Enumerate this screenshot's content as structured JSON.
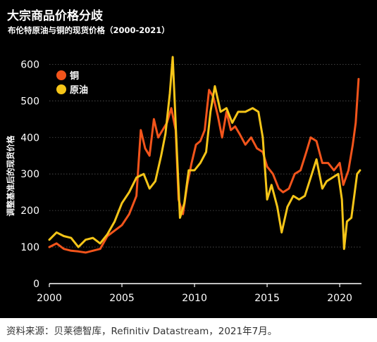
{
  "header": {
    "title": "大宗商品价格分歧",
    "subtitle": "布伦特原油与铜的现货价格（2000-2021）"
  },
  "footer": {
    "source": "资料来源：贝莱德智库，Refinitiv Datastream，2021年7月。"
  },
  "colors": {
    "background": "#000000",
    "copper": "#f2541b",
    "oil": "#f5c518",
    "axis_text": "#ffffff",
    "grid": "#555555"
  },
  "chart_data": {
    "type": "line",
    "ylabel": "调整基准后的现货价格",
    "xlabel": "",
    "xlim": [
      2000,
      2021.5
    ],
    "ylim": [
      0,
      620
    ],
    "x_ticks": [
      2000,
      2005,
      2010,
      2015,
      2020
    ],
    "y_ticks": [
      0,
      100,
      200,
      300,
      400,
      500,
      600
    ],
    "grid": "horizontal",
    "legend": "top-left",
    "series": [
      {
        "name": "铜",
        "color": "#f2541b",
        "x": [
          2000.0,
          2000.5,
          2001.0,
          2001.5,
          2002.0,
          2002.5,
          2003.0,
          2003.5,
          2004.0,
          2004.5,
          2005.0,
          2005.5,
          2006.0,
          2006.3,
          2006.6,
          2006.9,
          2007.2,
          2007.5,
          2007.8,
          2008.1,
          2008.4,
          2008.7,
          2008.9,
          2009.2,
          2009.5,
          2009.8,
          2010.1,
          2010.4,
          2010.7,
          2011.0,
          2011.3,
          2011.6,
          2011.9,
          2012.2,
          2012.5,
          2012.8,
          2013.1,
          2013.5,
          2013.9,
          2014.3,
          2014.7,
          2015.0,
          2015.4,
          2015.8,
          2016.1,
          2016.5,
          2016.9,
          2017.3,
          2017.7,
          2018.0,
          2018.4,
          2018.8,
          2019.2,
          2019.6,
          2020.0,
          2020.25,
          2020.6,
          2020.9,
          2021.1,
          2021.3
        ],
        "y": [
          100,
          110,
          95,
          90,
          88,
          85,
          90,
          95,
          130,
          145,
          160,
          190,
          240,
          420,
          370,
          350,
          450,
          400,
          420,
          440,
          480,
          420,
          230,
          190,
          270,
          330,
          380,
          390,
          420,
          530,
          510,
          460,
          400,
          470,
          420,
          430,
          410,
          380,
          400,
          370,
          360,
          320,
          300,
          260,
          250,
          260,
          300,
          310,
          360,
          400,
          390,
          330,
          330,
          310,
          330,
          270,
          310,
          380,
          440,
          560
        ]
      },
      {
        "name": "原油",
        "color": "#f5c518",
        "x": [
          2000.0,
          2000.5,
          2001.0,
          2001.5,
          2002.0,
          2002.5,
          2003.0,
          2003.5,
          2004.0,
          2004.5,
          2005.0,
          2005.5,
          2006.0,
          2006.5,
          2006.9,
          2007.3,
          2007.7,
          2008.0,
          2008.3,
          2008.5,
          2008.8,
          2009.0,
          2009.3,
          2009.6,
          2010.0,
          2010.4,
          2010.8,
          2011.1,
          2011.4,
          2011.8,
          2012.2,
          2012.6,
          2013.0,
          2013.5,
          2014.0,
          2014.4,
          2014.7,
          2015.0,
          2015.3,
          2015.7,
          2016.0,
          2016.4,
          2016.8,
          2017.2,
          2017.6,
          2018.0,
          2018.4,
          2018.8,
          2019.1,
          2019.5,
          2019.9,
          2020.15,
          2020.3,
          2020.5,
          2020.8,
          2021.0,
          2021.2,
          2021.4
        ],
        "y": [
          120,
          140,
          130,
          125,
          100,
          120,
          125,
          110,
          135,
          170,
          220,
          250,
          290,
          300,
          260,
          280,
          350,
          410,
          520,
          620,
          350,
          180,
          220,
          310,
          310,
          330,
          360,
          470,
          540,
          470,
          480,
          440,
          470,
          470,
          480,
          470,
          400,
          230,
          270,
          210,
          140,
          210,
          240,
          230,
          240,
          290,
          340,
          260,
          280,
          290,
          300,
          230,
          95,
          170,
          180,
          240,
          300,
          310
        ]
      }
    ]
  }
}
